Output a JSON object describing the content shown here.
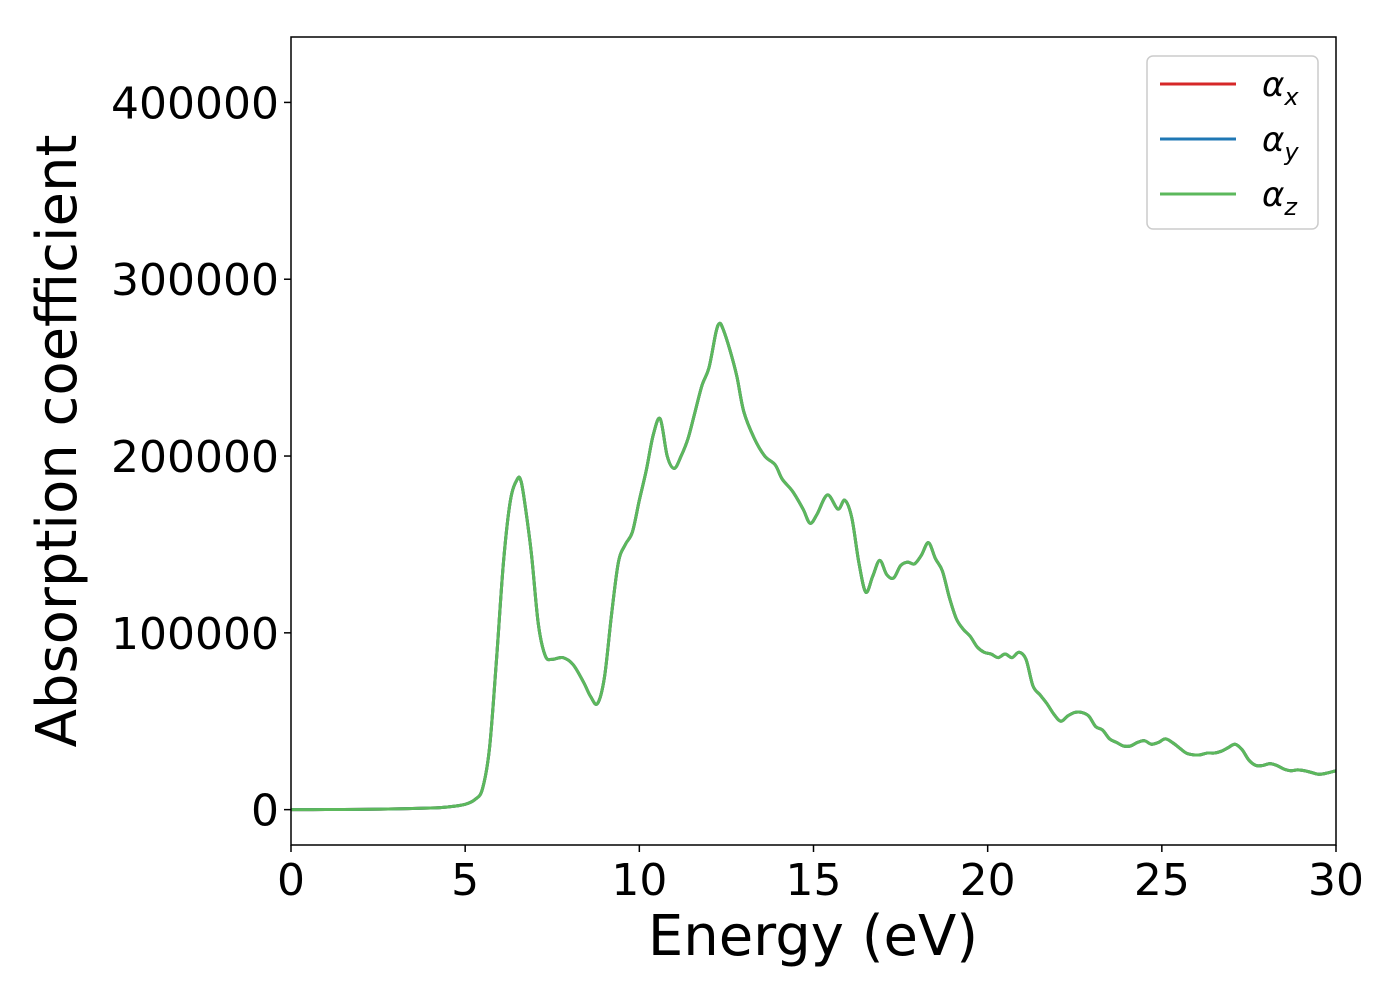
{
  "chart_data": {
    "type": "line",
    "title": "",
    "xlabel": "Energy (eV)",
    "ylabel": "Absorption coefficient",
    "xlim": [
      0,
      30
    ],
    "ylim": [
      -20000,
      437000
    ],
    "xticks": [
      0,
      5,
      10,
      15,
      20,
      25,
      30
    ],
    "xtick_labels": [
      "0",
      "5",
      "10",
      "15",
      "20",
      "25",
      "30"
    ],
    "yticks": [
      0,
      100000,
      200000,
      300000,
      400000
    ],
    "ytick_labels": [
      "0",
      "100000",
      "200000",
      "300000",
      "400000"
    ],
    "grid": false,
    "legend_position": "top-right",
    "x": [
      0,
      1,
      2,
      3,
      4,
      4.5,
      5,
      5.3,
      5.5,
      5.7,
      5.9,
      6.1,
      6.3,
      6.5,
      6.6,
      6.7,
      6.9,
      7.1,
      7.3,
      7.5,
      7.8,
      8.1,
      8.4,
      8.6,
      8.8,
      9.0,
      9.2,
      9.4,
      9.6,
      9.8,
      10.0,
      10.2,
      10.4,
      10.6,
      10.8,
      11.0,
      11.2,
      11.4,
      11.6,
      11.8,
      12.0,
      12.2,
      12.3,
      12.4,
      12.6,
      12.8,
      13.0,
      13.3,
      13.6,
      13.9,
      14.1,
      14.4,
      14.7,
      14.9,
      15.1,
      15.4,
      15.7,
      15.9,
      16.1,
      16.3,
      16.5,
      16.7,
      16.9,
      17.1,
      17.3,
      17.5,
      17.7,
      17.9,
      18.1,
      18.3,
      18.5,
      18.7,
      18.9,
      19.1,
      19.3,
      19.5,
      19.7,
      19.9,
      20.1,
      20.3,
      20.5,
      20.7,
      20.9,
      21.1,
      21.3,
      21.5,
      21.7,
      21.9,
      22.1,
      22.3,
      22.5,
      22.7,
      22.9,
      23.1,
      23.3,
      23.5,
      23.7,
      23.9,
      24.1,
      24.3,
      24.5,
      24.7,
      24.9,
      25.1,
      25.3,
      25.5,
      25.7,
      25.9,
      26.1,
      26.3,
      26.5,
      26.7,
      26.9,
      27.1,
      27.3,
      27.5,
      27.7,
      27.9,
      28.1,
      28.3,
      28.5,
      28.7,
      28.9,
      29.1,
      29.3,
      29.5,
      29.7,
      30.0
    ],
    "series": [
      {
        "name": "αx",
        "color": "#d62728",
        "y": [
          0,
          50,
          150,
          400,
          900,
          1500,
          3000,
          6000,
          12000,
          35000,
          85000,
          140000,
          175000,
          187000,
          186000,
          175000,
          145000,
          105000,
          87000,
          85000,
          86000,
          82000,
          72000,
          64000,
          60000,
          75000,
          110000,
          140000,
          150000,
          157000,
          175000,
          192000,
          212000,
          221000,
          200000,
          193000,
          200000,
          210000,
          225000,
          240000,
          250000,
          270000,
          275000,
          272000,
          260000,
          245000,
          225000,
          210000,
          200000,
          195000,
          187000,
          180000,
          170000,
          162000,
          167000,
          178000,
          170000,
          175000,
          165000,
          140000,
          123000,
          132000,
          141000,
          133000,
          131000,
          138000,
          140000,
          139000,
          144000,
          151000,
          142000,
          135000,
          120000,
          108000,
          102000,
          98000,
          92000,
          89000,
          88000,
          86000,
          88000,
          86000,
          89000,
          85000,
          70000,
          65000,
          60000,
          54000,
          50000,
          53000,
          55000,
          55000,
          53000,
          47000,
          45000,
          40000,
          38000,
          36000,
          36000,
          38000,
          39000,
          37000,
          38000,
          40000,
          38000,
          35000,
          32000,
          31000,
          31000,
          32000,
          32000,
          33000,
          35000,
          37000,
          34000,
          28000,
          25000,
          25000,
          26000,
          25000,
          23000,
          22000,
          22500,
          22000,
          21000,
          20000,
          20500,
          22000
        ]
      },
      {
        "name": "αy",
        "color": "#1f77b4",
        "y": [
          0,
          50,
          150,
          400,
          900,
          1500,
          3000,
          6000,
          12000,
          35000,
          85000,
          140000,
          175000,
          187000,
          186000,
          175000,
          145000,
          105000,
          87000,
          85000,
          86000,
          82000,
          72000,
          64000,
          60000,
          75000,
          110000,
          140000,
          150000,
          157000,
          175000,
          192000,
          212000,
          221000,
          200000,
          193000,
          200000,
          210000,
          225000,
          240000,
          250000,
          270000,
          275000,
          272000,
          260000,
          245000,
          225000,
          210000,
          200000,
          195000,
          187000,
          180000,
          170000,
          162000,
          167000,
          178000,
          170000,
          175000,
          165000,
          140000,
          123000,
          132000,
          141000,
          133000,
          131000,
          138000,
          140000,
          139000,
          144000,
          151000,
          142000,
          135000,
          120000,
          108000,
          102000,
          98000,
          92000,
          89000,
          88000,
          86000,
          88000,
          86000,
          89000,
          85000,
          70000,
          65000,
          60000,
          54000,
          50000,
          53000,
          55000,
          55000,
          53000,
          47000,
          45000,
          40000,
          38000,
          36000,
          36000,
          38000,
          39000,
          37000,
          38000,
          40000,
          38000,
          35000,
          32000,
          31000,
          31000,
          32000,
          32000,
          33000,
          35000,
          37000,
          34000,
          28000,
          25000,
          25000,
          26000,
          25000,
          23000,
          22000,
          22500,
          22000,
          21000,
          20000,
          20500,
          22000
        ]
      },
      {
        "name": "αz",
        "color": "#5cb85c",
        "y": [
          0,
          50,
          150,
          400,
          900,
          1500,
          3000,
          6000,
          12000,
          35000,
          85000,
          140000,
          175000,
          187000,
          186000,
          175000,
          145000,
          105000,
          87000,
          85000,
          86000,
          82000,
          72000,
          64000,
          60000,
          75000,
          110000,
          140000,
          150000,
          157000,
          175000,
          192000,
          212000,
          221000,
          200000,
          193000,
          200000,
          210000,
          225000,
          240000,
          250000,
          270000,
          275000,
          272000,
          260000,
          245000,
          225000,
          210000,
          200000,
          195000,
          187000,
          180000,
          170000,
          162000,
          167000,
          178000,
          170000,
          175000,
          165000,
          140000,
          123000,
          132000,
          141000,
          133000,
          131000,
          138000,
          140000,
          139000,
          144000,
          151000,
          142000,
          135000,
          120000,
          108000,
          102000,
          98000,
          92000,
          89000,
          88000,
          86000,
          88000,
          86000,
          89000,
          85000,
          70000,
          65000,
          60000,
          54000,
          50000,
          53000,
          55000,
          55000,
          53000,
          47000,
          45000,
          40000,
          38000,
          36000,
          36000,
          38000,
          39000,
          37000,
          38000,
          40000,
          38000,
          35000,
          32000,
          31000,
          31000,
          32000,
          32000,
          33000,
          35000,
          37000,
          34000,
          28000,
          25000,
          25000,
          26000,
          25000,
          23000,
          22000,
          22500,
          22000,
          21000,
          20000,
          20500,
          22000
        ]
      }
    ]
  }
}
